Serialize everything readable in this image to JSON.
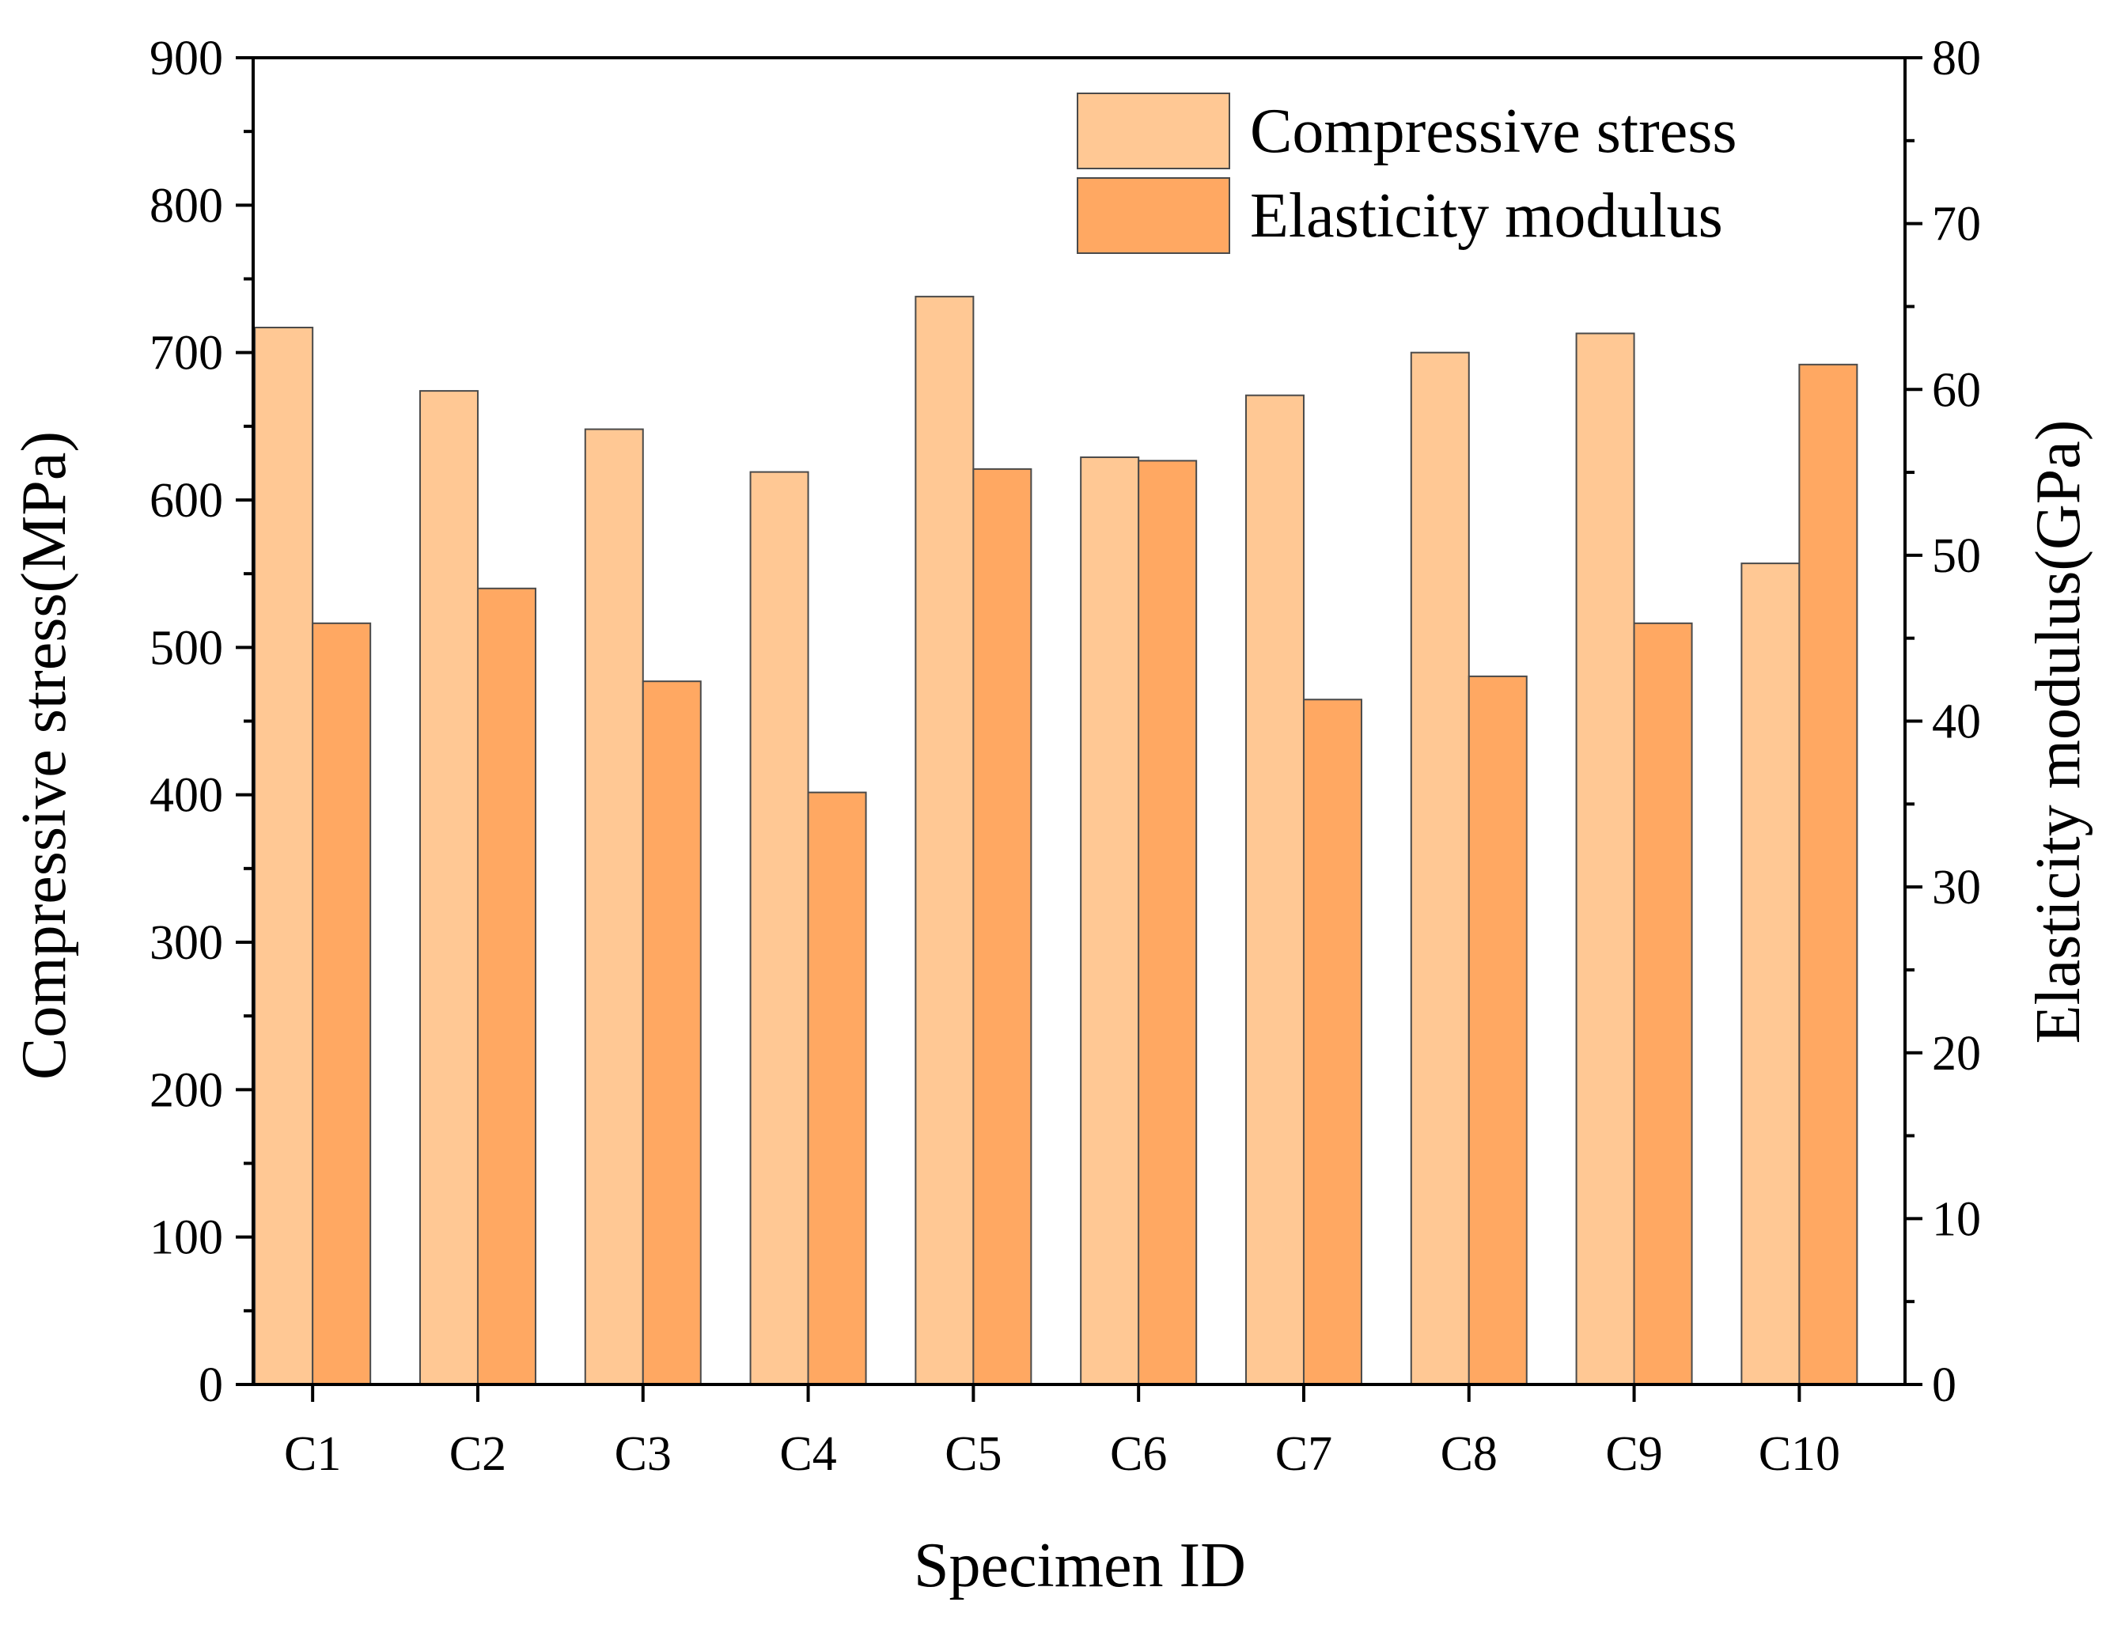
{
  "chart_data": {
    "type": "bar",
    "title": "",
    "xlabel": "Specimen ID",
    "ylabel": "Compressive stress(MPa)",
    "y2label": "Elasticity modulus(GPa)",
    "categories": [
      "C1",
      "C2",
      "C3",
      "C4",
      "C5",
      "C6",
      "C7",
      "C8",
      "C9",
      "C10"
    ],
    "series": [
      {
        "name": "Compressive stress",
        "axis": "left",
        "color": "#FFC894",
        "values": [
          717,
          674,
          648,
          619,
          738,
          629,
          671,
          700,
          713,
          557
        ]
      },
      {
        "name": "Elasticity modulus",
        "axis": "right",
        "color": "#FFA862",
        "values": [
          45.9,
          48.0,
          42.4,
          35.7,
          55.2,
          55.7,
          41.3,
          42.7,
          45.9,
          61.5
        ]
      }
    ],
    "ylim": [
      0,
      900
    ],
    "y2lim": [
      0,
      80
    ],
    "yticks": [
      0,
      100,
      200,
      300,
      400,
      500,
      600,
      700,
      800,
      900
    ],
    "y2ticks": [
      0,
      10,
      20,
      30,
      40,
      50,
      60,
      70,
      80
    ],
    "grid": false,
    "legend_position": "top-right"
  }
}
